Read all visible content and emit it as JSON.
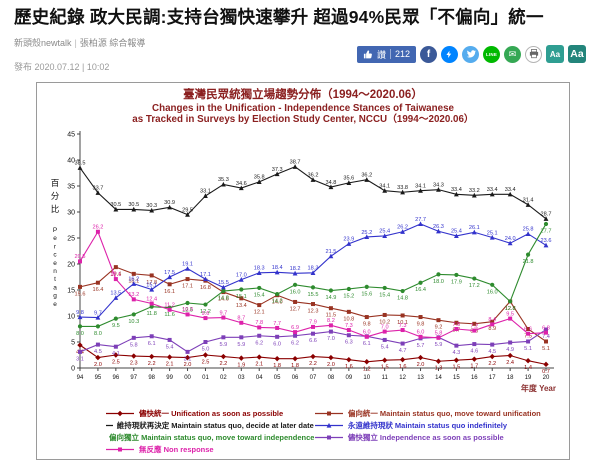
{
  "article": {
    "headline": "歷史紀錄 政大民調:支持台獨快速攀升 超過94%民眾「不偏向」統一",
    "source": "新頭殼newtalk",
    "separator": "|",
    "author": "張柏源 綜合報導",
    "publish": "發布 2020.07.12 | 10:02"
  },
  "share": {
    "like_label": "讚",
    "like_count": "212",
    "fb_letter": "f",
    "line_label": "LINE",
    "email_symbol": "✉",
    "font_small": "Aa",
    "font_large": "Aa"
  },
  "chart_data": {
    "type": "line",
    "title_zh": "臺灣民眾統獨立場趨勢分佈（1994～2020.06）",
    "title_en_1": "Changes in the Unification - Independence Stances of Taiwanese",
    "title_en_2": "as Tracked in Surveys by Election Study Center, NCCU（1994～2020.06）",
    "ylabel_zh": "百分比",
    "ylabel_en": "Percentage",
    "xlabel": "年度 Year",
    "ylim": [
      0,
      45
    ],
    "yticks": [
      0,
      5,
      10,
      15,
      20,
      25,
      30,
      35,
      40,
      45
    ],
    "grid": false,
    "legend_position": "bottom",
    "categories": [
      "94",
      "95",
      "96",
      "97",
      "98",
      "99",
      "00",
      "01",
      "02",
      "03",
      "04",
      "05",
      "06",
      "07",
      "08",
      "09",
      "10",
      "11",
      "12",
      "13",
      "14",
      "15",
      "16",
      "17",
      "18",
      "19",
      "20"
    ],
    "series": [
      {
        "key": "unification-asap",
        "name_zh": "儘快統一",
        "name_en": "Unification as soon as possible",
        "color": "#8b0000",
        "marker": "diamond",
        "label_side": "below",
        "values": [
          4.4,
          2.0,
          2.5,
          2.3,
          2.2,
          2.1,
          2.0,
          2.5,
          2.2,
          1.9,
          2.1,
          1.8,
          1.8,
          2.2,
          2.0,
          1.6,
          1.2,
          1.5,
          1.6,
          2.0,
          1.3,
          1.5,
          1.7,
          2.2,
          2.4,
          1.4,
          0.7
        ]
      },
      {
        "key": "lean-unification",
        "name_zh": "偏向統一",
        "name_en": "Maintain status quo, move toward unification",
        "color": "#993322",
        "marker": "square",
        "label_side": "below",
        "values": [
          15.6,
          16.4,
          19.4,
          18.1,
          17.8,
          16.1,
          17.1,
          16.8,
          14.6,
          13.4,
          12.1,
          14.0,
          12.7,
          12.3,
          11.5,
          10.8,
          9.8,
          10.2,
          10.1,
          9.8,
          9.2,
          8.7,
          8.5,
          8.9,
          12.8,
          7.5,
          5.1
        ]
      },
      {
        "key": "status-quo-decide-later",
        "name_zh": "維持現狀再決定",
        "name_en": "Maintain status quo, decide at later date",
        "color": "#1a1a1a",
        "marker": "triangle",
        "label_side": "above",
        "values": [
          38.5,
          33.7,
          30.5,
          30.5,
          30.3,
          30.9,
          29.5,
          33.1,
          35.3,
          34.6,
          35.8,
          37.3,
          38.7,
          36.2,
          34.8,
          35.6,
          36.2,
          34.1,
          33.8,
          34.1,
          34.3,
          33.4,
          33.2,
          33.4,
          33.4,
          31.4,
          28.7
        ]
      },
      {
        "key": "status-quo-forever",
        "name_zh": "永遠維持現狀",
        "name_en": "Maintain status quo indefinitely",
        "color": "#3333cc",
        "marker": "triangle",
        "label_side": "above",
        "values": [
          9.8,
          9.7,
          13.5,
          16.2,
          15.1,
          17.5,
          19.1,
          17.1,
          15.5,
          17.0,
          18.3,
          18.4,
          18.2,
          18.3,
          21.5,
          23.9,
          25.2,
          25.4,
          26.2,
          27.7,
          26.3,
          25.4,
          26.1,
          25.1,
          24.0,
          25.8,
          23.6
        ]
      },
      {
        "key": "lean-independence",
        "name_zh": "偏向獨立",
        "name_en": "Maintain status quo, move toward independence",
        "color": "#2e8b2e",
        "marker": "circle",
        "label_side": "below",
        "values": [
          8.0,
          8.0,
          9.5,
          10.3,
          11.8,
          11.6,
          12.5,
          12.2,
          14.8,
          15.1,
          15.4,
          14.2,
          16.0,
          15.5,
          14.9,
          15.2,
          15.6,
          15.4,
          14.8,
          16.4,
          18.0,
          17.9,
          17.2,
          16.0,
          12.8,
          21.8,
          27.7
        ]
      },
      {
        "key": "independence-asap",
        "name_zh": "儘快獨立",
        "name_en": "Independence as soon as possible",
        "color": "#7d3fb8",
        "marker": "square",
        "label_side": "below",
        "values": [
          3.1,
          4.5,
          4.1,
          5.8,
          6.1,
          5.4,
          3.1,
          5.0,
          5.9,
          5.9,
          6.2,
          6.0,
          6.2,
          6.6,
          7.0,
          6.3,
          6.1,
          5.4,
          4.7,
          5.7,
          5.9,
          4.3,
          4.6,
          4.5,
          4.9,
          5.1,
          7.4
        ]
      },
      {
        "key": "non-response",
        "name_zh": "無反應",
        "name_en": "Non response",
        "color": "#dd22aa",
        "marker": "square",
        "label_side": "above",
        "values": [
          20.5,
          26.2,
          17.1,
          13.2,
          12.4,
          11.2,
          10.3,
          9.6,
          9.7,
          8.7,
          7.8,
          7.7,
          6.9,
          7.9,
          8.2,
          7.3,
          6.0,
          7.0,
          7.3,
          6.0,
          5.8,
          7.5,
          7.2,
          8.4,
          9.5,
          6.6,
          6.8
        ]
      }
    ]
  }
}
